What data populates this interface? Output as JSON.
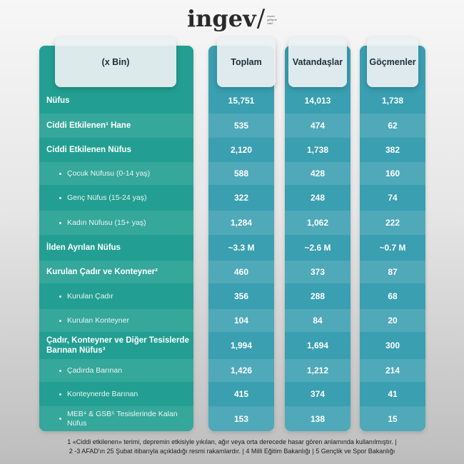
{
  "logo": {
    "word": "ingev",
    "slash": "/",
    "tagline": [
      "insani",
      "gelişme",
      "vakfı"
    ]
  },
  "header": {
    "label": "(x Bin)",
    "columns": [
      "Toplam",
      "Vatandaşlar",
      "Göçmenler"
    ]
  },
  "rows": [
    {
      "label": "Nüfus",
      "values": [
        "15,751",
        "14,013",
        "1,738"
      ]
    },
    {
      "label": "Ciddi Etkilenen¹ Hane",
      "values": [
        "535",
        "474",
        "62"
      ]
    },
    {
      "label": "Ciddi Etkilenen Nüfus",
      "values": [
        "2,120",
        "1,738",
        "382"
      ]
    },
    {
      "label": "Çocuk Nüfusu (0-14 yaş)",
      "values": [
        "588",
        "428",
        "160"
      ]
    },
    {
      "label": "Genç Nüfus (15-24 yaş)",
      "values": [
        "322",
        "248",
        "74"
      ]
    },
    {
      "label": "Kadın Nüfusu  (15+ yaş)",
      "values": [
        "1,284",
        "1,062",
        "222"
      ]
    },
    {
      "label": "İlden Ayrılan Nüfus",
      "values": [
        "~3.3 M",
        "~2.6 M",
        "~0.7 M"
      ]
    },
    {
      "label": "Kurulan Çadır ve Konteyner²",
      "values": [
        "460",
        "373",
        "87"
      ]
    },
    {
      "label": "Kurulan Çadır",
      "values": [
        "356",
        "288",
        "68"
      ]
    },
    {
      "label": "Kurulan Konteyner",
      "values": [
        "104",
        "84",
        "20"
      ]
    },
    {
      "label": "Çadır, Konteyner ve Diğer Tesislerde Barınan Nüfus³",
      "values": [
        "1,994",
        "1,694",
        "300"
      ]
    },
    {
      "label": "Çadırda Barınan",
      "values": [
        "1,426",
        "1,212",
        "214"
      ]
    },
    {
      "label": "Konteynerde Barınan",
      "values": [
        "415",
        "374",
        "41"
      ]
    },
    {
      "label": "MEB⁴ & GSB⁵ Tesislerinde Kalan Nüfus",
      "values": [
        "153",
        "138",
        "15"
      ]
    }
  ],
  "footnote": [
    "1 «Ciddi etkilenen» terimi, depremin etkisiyle yıkılan, ağır veya orta derecede hasar gören anlamında kullanılmıştır. |",
    "2 -3 AFAD'ın 25 Şubat itibarıyla açıkladığı resmi rakamlardır. | 4 Milli Eğitim Bakanlığı | 5 Gençlik ve Spor Bakanlığı"
  ]
}
